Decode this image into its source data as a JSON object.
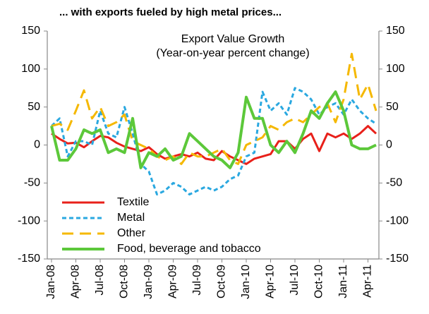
{
  "chart_data": {
    "type": "line",
    "title": "... with exports fueled by high metal prices...",
    "annotation": [
      "Export Value Growth",
      "(Year-on-year percent change)"
    ],
    "categories": [
      "Jan-08",
      null,
      null,
      "Apr-08",
      null,
      null,
      "Jul-08",
      null,
      null,
      "Oct-08",
      null,
      null,
      "Jan-09",
      null,
      null,
      "Apr-09",
      null,
      null,
      "Jul-09",
      null,
      null,
      "Oct-09",
      null,
      null,
      "Jan-10",
      null,
      null,
      "Apr-10",
      null,
      null,
      "Jul-10",
      null,
      null,
      "Oct-10",
      null,
      null,
      "Jan-11",
      null,
      null,
      "Apr-11",
      null
    ],
    "series": [
      {
        "name": "Textile",
        "color": "#e8201a",
        "style": "solid",
        "values": [
          15,
          8,
          2,
          3,
          -3,
          5,
          12,
          10,
          3,
          -2,
          -5,
          -8,
          -3,
          -12,
          -18,
          -15,
          -12,
          -15,
          -10,
          -18,
          -20,
          -8,
          -15,
          -20,
          -25,
          -18,
          -15,
          -12,
          5,
          5,
          -5,
          8,
          15,
          -8,
          15,
          10,
          15,
          8,
          15,
          25,
          15
        ]
      },
      {
        "name": "Metal",
        "color": "#2aa8e0",
        "style": "dashed",
        "values": [
          25,
          35,
          -15,
          5,
          5,
          0,
          45,
          15,
          10,
          50,
          15,
          -25,
          -35,
          -65,
          -60,
          -50,
          -55,
          -65,
          -60,
          -55,
          -60,
          -55,
          -45,
          -40,
          -15,
          -10,
          70,
          45,
          55,
          40,
          75,
          70,
          60,
          40,
          50,
          55,
          40,
          60,
          45,
          35,
          28
        ]
      },
      {
        "name": "Other",
        "color": "#f5b800",
        "style": "long-dash",
        "values": [
          25,
          28,
          20,
          45,
          72,
          35,
          50,
          25,
          30,
          40,
          5,
          0,
          -5,
          -15,
          -20,
          -15,
          -25,
          -10,
          -15,
          -15,
          -10,
          -5,
          -20,
          -25,
          0,
          5,
          10,
          25,
          20,
          30,
          35,
          30,
          40,
          50,
          55,
          30,
          60,
          120,
          60,
          80,
          45
        ]
      },
      {
        "name": "Food, beverage and tobacco",
        "color": "#5cc83a",
        "style": "solid",
        "values": [
          25,
          -20,
          -20,
          -5,
          20,
          15,
          20,
          -10,
          -5,
          -10,
          35,
          -30,
          -10,
          -15,
          -5,
          -20,
          -15,
          15,
          5,
          -5,
          -15,
          -20,
          -30,
          -10,
          63,
          35,
          35,
          0,
          -10,
          5,
          -10,
          15,
          45,
          35,
          55,
          70,
          45,
          0,
          -5,
          -5,
          0
        ]
      }
    ],
    "ylim": [
      -150,
      150
    ],
    "yticks": [
      -150,
      -100,
      -50,
      0,
      50,
      100,
      150
    ],
    "y2lim": [
      -150,
      150
    ],
    "y2ticks": [
      -150,
      -100,
      -50,
      0,
      50,
      100,
      150
    ],
    "legend": "bottom-left"
  }
}
